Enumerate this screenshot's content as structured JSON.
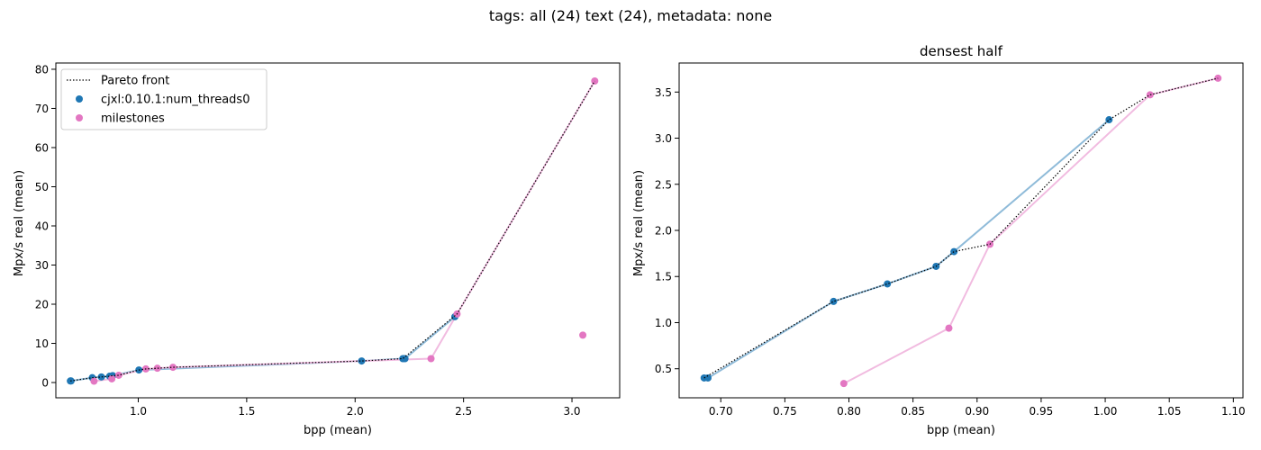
{
  "suptitle": "tags: all (24) text (24), metadata: none",
  "chart_data": [
    {
      "type": "scatter",
      "title": "",
      "xlabel": "bpp (mean)",
      "ylabel": "Mpx/s real (mean)",
      "xlim": [
        0.62,
        3.22
      ],
      "ylim": [
        -3.9,
        81.6
      ],
      "xticks": [
        1.0,
        1.5,
        2.0,
        2.5,
        3.0
      ],
      "xtick_labels": [
        "1.0",
        "1.5",
        "2.0",
        "2.5",
        "3.0"
      ],
      "yticks": [
        0,
        10,
        20,
        30,
        40,
        50,
        60,
        70,
        80
      ],
      "ytick_labels": [
        "0",
        "10",
        "20",
        "30",
        "40",
        "50",
        "60",
        "70",
        "80"
      ],
      "grid": false,
      "legend": {
        "position": "top-left",
        "entries": [
          "Pareto front",
          "cjxl:0.10.1:num_threads0",
          "milestones"
        ]
      },
      "series": [
        {
          "name": "cjxl:0.10.1:num_threads0",
          "color": "#1f77b4",
          "line_color": "#8fbbd9",
          "x": [
            0.687,
            0.69,
            0.788,
            0.83,
            0.868,
            0.882,
            1.003,
            2.03,
            2.22,
            2.23,
            2.46
          ],
          "y": [
            0.4,
            0.4,
            1.23,
            1.42,
            1.61,
            1.77,
            3.2,
            5.5,
            6.1,
            6.1,
            16.8
          ]
        },
        {
          "name": "milestones",
          "color": "#e377c2",
          "line_color": "#f1bbe0",
          "x": [
            0.796,
            0.878,
            0.91,
            1.035,
            1.088,
            1.16,
            2.35,
            2.47,
            3.105
          ],
          "y": [
            0.34,
            0.94,
            1.85,
            3.47,
            3.65,
            3.9,
            6.1,
            17.5,
            77.0
          ],
          "extra_points": [
            {
              "x": 3.05,
              "y": 12.1
            }
          ]
        },
        {
          "name": "Pareto front",
          "style": "dotted",
          "color": "#000000",
          "x": [
            0.687,
            0.788,
            0.83,
            0.868,
            0.882,
            0.91,
            1.003,
            1.035,
            1.088,
            1.16,
            2.03,
            2.22,
            2.47,
            3.105
          ],
          "y": [
            0.4,
            1.23,
            1.42,
            1.61,
            1.77,
            1.85,
            3.2,
            3.47,
            3.65,
            3.9,
            5.5,
            6.1,
            17.5,
            77.0
          ]
        }
      ]
    },
    {
      "type": "scatter",
      "title": "densest half",
      "xlabel": "bpp (mean)",
      "ylabel": "Mpx/s real (mean)",
      "xlim": [
        0.6675,
        1.1075
      ],
      "ylim": [
        0.185,
        3.815
      ],
      "xticks": [
        0.7,
        0.75,
        0.8,
        0.85,
        0.9,
        0.95,
        1.0,
        1.05,
        1.1
      ],
      "xtick_labels": [
        "0.70",
        "0.75",
        "0.80",
        "0.85",
        "0.90",
        "0.95",
        "1.00",
        "1.05",
        "1.10"
      ],
      "yticks": [
        0.5,
        1.0,
        1.5,
        2.0,
        2.5,
        3.0,
        3.5
      ],
      "ytick_labels": [
        "0.5",
        "1.0",
        "1.5",
        "2.0",
        "2.5",
        "3.0",
        "3.5"
      ],
      "grid": false,
      "series": [
        {
          "name": "cjxl:0.10.1:num_threads0",
          "color": "#1f77b4",
          "line_color": "#8fbbd9",
          "x": [
            0.687,
            0.69,
            0.788,
            0.83,
            0.868,
            0.882,
            1.003
          ],
          "y": [
            0.4,
            0.4,
            1.23,
            1.42,
            1.61,
            1.77,
            3.2
          ]
        },
        {
          "name": "milestones",
          "color": "#e377c2",
          "line_color": "#f1bbe0",
          "x": [
            0.796,
            0.878,
            0.91,
            1.035,
            1.088
          ],
          "y": [
            0.34,
            0.94,
            1.85,
            3.47,
            3.65
          ]
        },
        {
          "name": "Pareto front",
          "style": "dotted",
          "color": "#000000",
          "x": [
            0.687,
            0.788,
            0.83,
            0.868,
            0.882,
            0.91,
            1.003,
            1.035,
            1.088
          ],
          "y": [
            0.4,
            1.23,
            1.42,
            1.61,
            1.77,
            1.85,
            3.2,
            3.47,
            3.65
          ]
        }
      ]
    }
  ]
}
